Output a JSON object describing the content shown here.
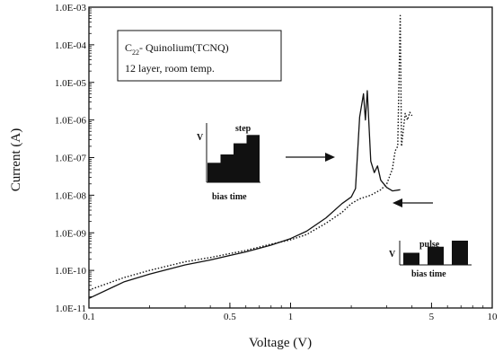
{
  "chart_data": {
    "type": "line",
    "xlabel": "Voltage (V)",
    "ylabel": "Current (A)",
    "x_scale": "log",
    "y_scale": "log",
    "xlim": [
      0.1,
      10
    ],
    "ylim": [
      1e-11,
      0.001
    ],
    "x_tick_labels": [
      {
        "value": 0.1,
        "label": "0.1"
      },
      {
        "value": 0.5,
        "label": "0.5"
      },
      {
        "value": 1,
        "label": "1"
      },
      {
        "value": 5,
        "label": "5"
      },
      {
        "value": 10,
        "label": "10"
      }
    ],
    "y_tick_labels": [
      {
        "value": 1e-11,
        "label": "1.0E-11"
      },
      {
        "value": 1e-10,
        "label": "1.0E-10"
      },
      {
        "value": 1e-09,
        "label": "1.0E-09"
      },
      {
        "value": 1e-08,
        "label": "1.0E-08"
      },
      {
        "value": 1e-07,
        "label": "1.0E-07"
      },
      {
        "value": 1e-06,
        "label": "1.0E-06"
      },
      {
        "value": 1e-05,
        "label": "1.0E-05"
      },
      {
        "value": 0.0001,
        "label": "1.0E-04"
      },
      {
        "value": 0.001,
        "label": "1.0E-03"
      }
    ],
    "legend_box": {
      "line1_main": "C",
      "line1_sub": "22",
      "line1_rest": "- Quinolium(TCNQ)",
      "line2": "12 layer,  room temp."
    },
    "series": [
      {
        "style": "solid",
        "x": [
          0.1,
          0.15,
          0.2,
          0.3,
          0.4,
          0.5,
          0.6,
          0.8,
          1.0,
          1.2,
          1.5,
          1.8,
          2.0,
          2.1,
          2.2,
          2.3,
          2.35,
          2.4,
          2.5,
          2.6,
          2.7,
          2.8,
          3.0,
          3.2,
          3.5
        ],
        "y": [
          1.8e-11,
          5e-11,
          8e-11,
          1.4e-10,
          1.9e-10,
          2.5e-10,
          3.1e-10,
          4.7e-10,
          7e-10,
          1.1e-09,
          2.5e-09,
          6e-09,
          9e-09,
          1.5e-08,
          1.2e-06,
          5e-06,
          1e-06,
          6e-06,
          8e-08,
          4e-08,
          6e-08,
          2.5e-08,
          1.6e-08,
          1.3e-08,
          1.4e-08
        ]
      },
      {
        "style": "dotted",
        "x": [
          0.1,
          0.15,
          0.2,
          0.3,
          0.4,
          0.5,
          0.6,
          0.8,
          1.0,
          1.2,
          1.5,
          1.8,
          2.0,
          2.2,
          2.5,
          2.8,
          3.0,
          3.2,
          3.3,
          3.4,
          3.5,
          3.55,
          3.6,
          3.7,
          3.8,
          3.9,
          4.0
        ],
        "y": [
          3e-11,
          6.5e-11,
          1e-10,
          1.7e-10,
          2.2e-10,
          2.8e-10,
          3.4e-10,
          5e-10,
          6.5e-10,
          9e-10,
          1.8e-09,
          3.5e-09,
          6e-09,
          8e-09,
          1e-08,
          1.4e-08,
          2e-08,
          5e-08,
          1.5e-07,
          2e-07,
          0.0006,
          2e-07,
          4e-07,
          1.5e-06,
          1e-06,
          1.6e-06,
          1.3e-06
        ]
      }
    ],
    "insets": [
      {
        "name": "step",
        "y_label": "V",
        "x_label": "bias  time",
        "levels": [
          0.35,
          0.5,
          0.7,
          0.85
        ]
      },
      {
        "name": "pulse",
        "y_label": "V",
        "x_label": "bias  time",
        "levels": [
          0.3,
          0.45,
          0.6
        ]
      }
    ]
  }
}
